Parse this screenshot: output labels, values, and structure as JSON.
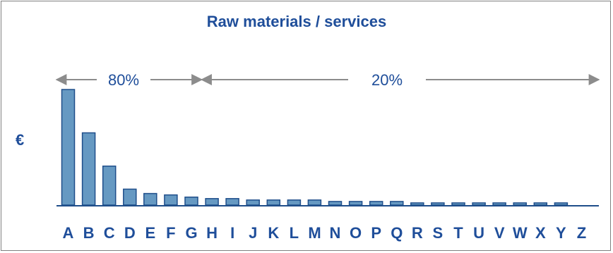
{
  "chart_data": {
    "type": "bar",
    "title": "Raw materials / services",
    "ylabel": "€",
    "xlabel": "",
    "categories": [
      "A",
      "B",
      "C",
      "D",
      "E",
      "F",
      "G",
      "H",
      "I",
      "J",
      "K",
      "L",
      "M",
      "N",
      "O",
      "P",
      "Q",
      "R",
      "S",
      "T",
      "U",
      "V",
      "W",
      "X",
      "Y",
      "Z"
    ],
    "values": [
      160,
      100,
      54,
      22,
      16,
      14,
      11,
      9,
      9,
      7,
      7,
      7,
      7,
      5,
      5,
      5,
      5,
      3,
      3,
      3,
      3,
      3,
      3,
      3,
      3,
      0
    ],
    "ylim": [
      0,
      170
    ],
    "grid": false,
    "legend": "none",
    "annotations": [
      {
        "label": "80%",
        "from": "A",
        "to": "G"
      },
      {
        "label": "20%",
        "from": "H",
        "to": "Z"
      }
    ],
    "colors": {
      "bar_fill": "#6699C2",
      "bar_stroke": "#1F4E8A",
      "text": "#1F4E9A",
      "arrow": "#8C8C8C",
      "axis": "#1F4E8A",
      "frame": "#808080"
    }
  }
}
